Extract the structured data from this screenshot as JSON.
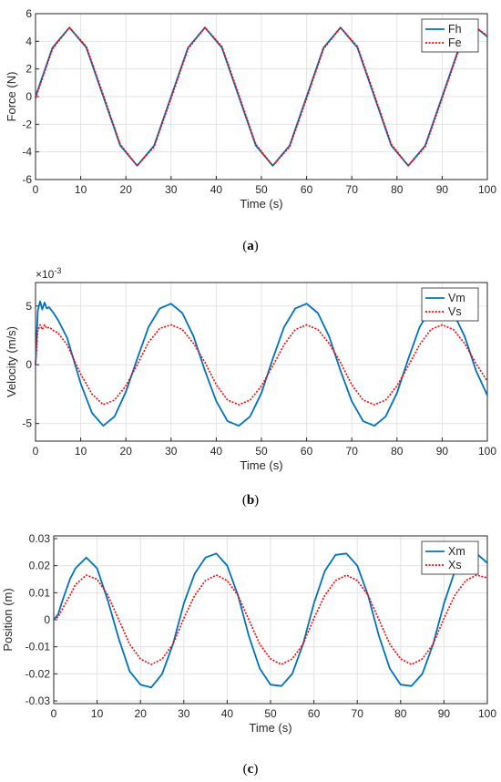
{
  "chart_data": [
    {
      "type": "line",
      "panel_label": "a",
      "xlabel": "Time (s)",
      "ylabel": "Force (N)",
      "xlim": [
        0,
        100
      ],
      "ylim": [
        -6,
        6
      ],
      "xticks": [
        0,
        10,
        20,
        30,
        40,
        50,
        60,
        70,
        80,
        90,
        100
      ],
      "yticks": [
        -6,
        -4,
        -2,
        0,
        2,
        4,
        6
      ],
      "grid": true,
      "legend": "top-right",
      "series": [
        {
          "name": "Fh",
          "color": "#0072BD",
          "style": "solid",
          "x": [
            0,
            3.75,
            7.5,
            11.25,
            15,
            18.75,
            22.5,
            26.25,
            30,
            33.75,
            37.5,
            41.25,
            45,
            48.75,
            52.5,
            56.25,
            60,
            63.75,
            67.5,
            71.25,
            75,
            78.75,
            82.5,
            86.25,
            90,
            93.75,
            97.5,
            100
          ],
          "y": [
            0,
            3.54,
            5,
            3.54,
            0,
            -3.54,
            -5,
            -3.54,
            0,
            3.54,
            5,
            3.54,
            0,
            -3.54,
            -5,
            -3.54,
            0,
            3.54,
            5,
            3.54,
            0,
            -3.54,
            -5,
            -3.54,
            0,
            3.54,
            5,
            4.33
          ]
        },
        {
          "name": "Fe",
          "color": "#FF0000",
          "style": "dotted",
          "x": [
            0,
            3.75,
            7.5,
            11.25,
            15,
            18.75,
            22.5,
            26.25,
            30,
            33.75,
            37.5,
            41.25,
            45,
            48.75,
            52.5,
            56.25,
            60,
            63.75,
            67.5,
            71.25,
            75,
            78.75,
            82.5,
            86.25,
            90,
            93.75,
            97.5,
            100
          ],
          "y": [
            -0.13,
            3.45,
            5,
            3.63,
            0.13,
            -3.45,
            -5,
            -3.63,
            -0.13,
            3.45,
            5,
            3.63,
            0.13,
            -3.45,
            -5,
            -3.63,
            -0.13,
            3.45,
            5,
            3.63,
            0.13,
            -3.45,
            -5,
            -3.63,
            -0.13,
            3.45,
            5,
            4.4
          ]
        }
      ]
    },
    {
      "type": "line",
      "panel_label": "b",
      "xlabel": "Time (s)",
      "ylabel": "Velocity (m/s)",
      "y_exponent": "×10",
      "y_exponent_power": "-3",
      "xlim": [
        0,
        100
      ],
      "ylim": [
        -6.5,
        7
      ],
      "xticks": [
        0,
        10,
        20,
        30,
        40,
        50,
        60,
        70,
        80,
        90,
        100
      ],
      "yticks": [
        -5,
        0,
        5
      ],
      "grid": true,
      "legend": "top-right",
      "series": [
        {
          "name": "Vm",
          "color": "#0072BD",
          "style": "solid",
          "x": [
            0,
            0.5,
            1,
            1.5,
            2,
            2.5,
            3,
            4,
            5,
            7,
            10,
            12.5,
            15,
            17.5,
            20,
            22.5,
            25,
            27.5,
            30,
            32.5,
            35,
            37.5,
            40,
            42.5,
            45,
            47.5,
            50,
            52.5,
            55,
            57.5,
            60,
            62.5,
            65,
            67.5,
            70,
            72.5,
            75,
            77.5,
            80,
            82.5,
            85,
            87.5,
            90,
            92.5,
            95,
            97.5,
            100
          ],
          "y": [
            0,
            4.6,
            5.4,
            4.7,
            5.3,
            4.8,
            4.9,
            4.4,
            3.8,
            2.3,
            -1.6,
            -4.1,
            -5.2,
            -4.4,
            -2.3,
            0.5,
            3.2,
            4.8,
            5.2,
            4.4,
            2.4,
            -0.5,
            -3.1,
            -4.8,
            -5.2,
            -4.4,
            -2.4,
            0.5,
            3.2,
            4.8,
            5.2,
            4.4,
            2.4,
            -0.5,
            -3.1,
            -4.8,
            -5.2,
            -4.4,
            -2.4,
            0.5,
            3.2,
            4.8,
            5.2,
            4.4,
            2.4,
            -0.5,
            -2.6
          ]
        },
        {
          "name": "Vs",
          "color": "#FF0000",
          "style": "dotted",
          "x": [
            0,
            0.5,
            1,
            1.5,
            2,
            2.5,
            3,
            4,
            5,
            7,
            10,
            12.5,
            15,
            17.5,
            20,
            22.5,
            25,
            27.5,
            30,
            32.5,
            35,
            37.5,
            40,
            42.5,
            45,
            47.5,
            50,
            52.5,
            55,
            57.5,
            60,
            62.5,
            65,
            67.5,
            70,
            72.5,
            75,
            77.5,
            80,
            82.5,
            85,
            87.5,
            90,
            92.5,
            95,
            97.5,
            100
          ],
          "y": [
            0,
            2.9,
            3.4,
            3.0,
            3.4,
            3.1,
            3.2,
            2.9,
            2.7,
            1.7,
            -0.8,
            -2.5,
            -3.4,
            -3.0,
            -1.8,
            0,
            1.9,
            3.1,
            3.4,
            3.0,
            1.8,
            0.2,
            -1.7,
            -3.0,
            -3.4,
            -3.0,
            -1.8,
            -0.1,
            1.7,
            3.0,
            3.4,
            3.0,
            1.8,
            0.2,
            -1.7,
            -3.0,
            -3.4,
            -3.0,
            -1.8,
            -0.1,
            1.7,
            3.0,
            3.4,
            3.0,
            1.8,
            0.1,
            -1.4
          ]
        }
      ]
    },
    {
      "type": "line",
      "panel_label": "c",
      "xlabel": "Time (s)",
      "ylabel": "Position (m)",
      "xlim": [
        0,
        100
      ],
      "ylim": [
        -0.031,
        0.031
      ],
      "xticks": [
        0,
        10,
        20,
        30,
        40,
        50,
        60,
        70,
        80,
        90,
        100
      ],
      "yticks": [
        -0.03,
        -0.02,
        -0.01,
        0,
        0.01,
        0.02,
        0.03
      ],
      "grid": true,
      "legend": "top-right",
      "series": [
        {
          "name": "Xm",
          "color": "#0072BD",
          "style": "solid",
          "x": [
            0,
            1,
            2,
            3.75,
            5,
            7.5,
            10,
            12.5,
            15,
            17.5,
            20,
            22.5,
            25,
            27.5,
            30,
            32.5,
            35,
            37.5,
            40,
            42.5,
            45,
            47.5,
            50,
            52.5,
            55,
            57.5,
            60,
            62.5,
            65,
            67.5,
            70,
            72.5,
            75,
            77.5,
            80,
            82.5,
            85,
            87.5,
            90,
            92.5,
            95,
            97.5,
            100
          ],
          "y": [
            0,
            0.002,
            0.007,
            0.015,
            0.019,
            0.023,
            0.019,
            0.007,
            -0.007,
            -0.019,
            -0.024,
            -0.025,
            -0.02,
            -0.009,
            0.006,
            0.017,
            0.023,
            0.0245,
            0.02,
            0.009,
            -0.006,
            -0.018,
            -0.024,
            -0.0245,
            -0.02,
            -0.009,
            0.006,
            0.018,
            0.024,
            0.0245,
            0.02,
            0.009,
            -0.006,
            -0.018,
            -0.024,
            -0.0245,
            -0.02,
            -0.009,
            0.006,
            0.018,
            0.024,
            0.0245,
            0.021
          ]
        },
        {
          "name": "Xs",
          "color": "#FF0000",
          "style": "dotted",
          "x": [
            0,
            1,
            2,
            3.75,
            5,
            7.5,
            10,
            12.5,
            15,
            17.5,
            20,
            22.5,
            25,
            27.5,
            30,
            32.5,
            35,
            37.5,
            40,
            42.5,
            45,
            47.5,
            50,
            52.5,
            55,
            57.5,
            60,
            62.5,
            65,
            67.5,
            70,
            72.5,
            75,
            77.5,
            80,
            82.5,
            85,
            87.5,
            90,
            92.5,
            95,
            97.5,
            100
          ],
          "y": [
            0,
            0.001,
            0.004,
            0.009,
            0.013,
            0.0165,
            0.015,
            0.009,
            0,
            -0.009,
            -0.0145,
            -0.0165,
            -0.0145,
            -0.009,
            0.0005,
            0.009,
            0.0145,
            0.0165,
            0.0145,
            0.009,
            0,
            -0.009,
            -0.0145,
            -0.0165,
            -0.0145,
            -0.009,
            0.0005,
            0.009,
            0.0145,
            0.0165,
            0.0145,
            0.009,
            0,
            -0.009,
            -0.0145,
            -0.0165,
            -0.0145,
            -0.009,
            0.0005,
            0.009,
            0.0145,
            0.0165,
            0.0155
          ]
        }
      ]
    }
  ],
  "captions": [
    {
      "open": "(",
      "letter": "a",
      "close": ")"
    },
    {
      "open": "(",
      "letter": "b",
      "close": ")"
    },
    {
      "open": "(",
      "letter": "c",
      "close": ")"
    }
  ]
}
